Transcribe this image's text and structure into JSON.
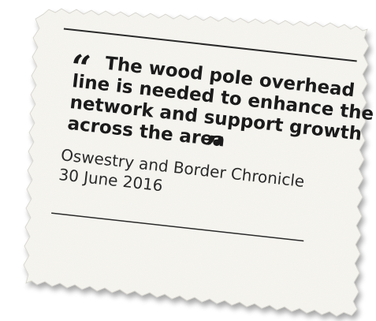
{
  "clipping": {
    "quote_lines": [
      "The wood pole overhead",
      "line is needed to enhance the",
      "network and support growth",
      "across the area"
    ],
    "open_quote": "“",
    "close_quote": "”",
    "source_lines": [
      "Oswestry and Border Chronicle",
      "30 June 2016"
    ]
  },
  "colors": {
    "paper": "#f6f5f0",
    "text": "#1b1b1b",
    "rule": "#2a2a2a"
  }
}
